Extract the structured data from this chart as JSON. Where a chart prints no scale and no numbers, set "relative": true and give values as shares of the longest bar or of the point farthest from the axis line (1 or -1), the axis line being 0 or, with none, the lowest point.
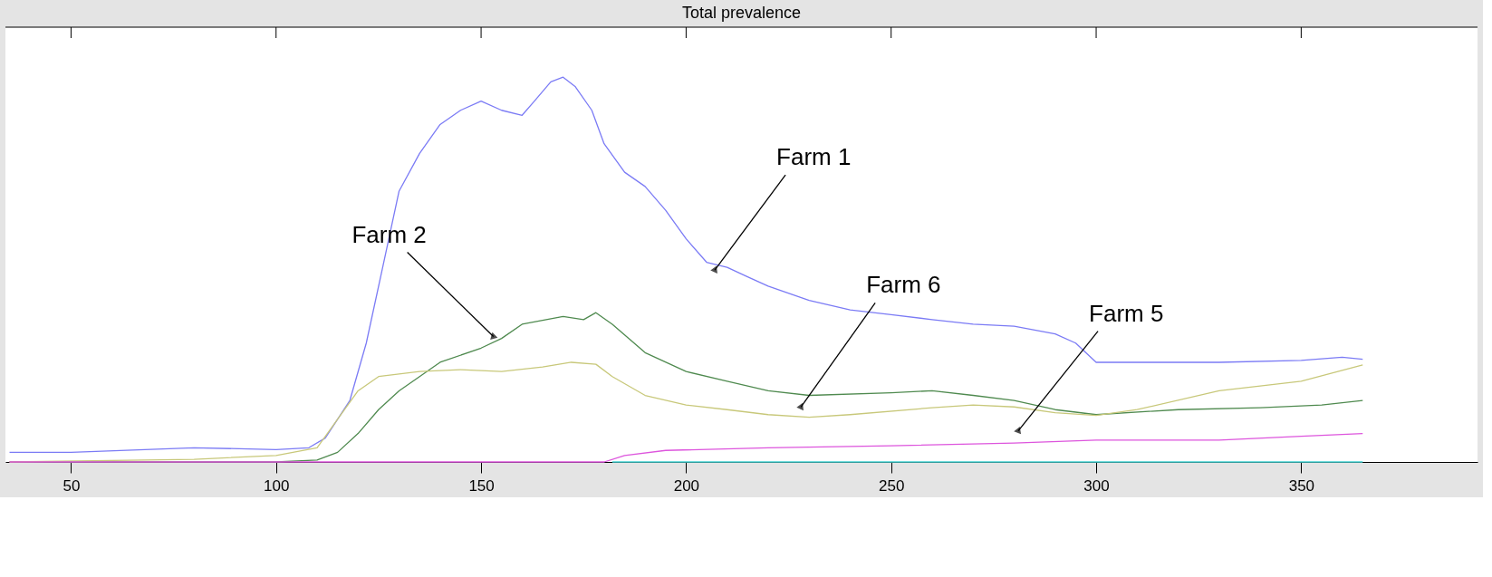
{
  "chart_data": {
    "type": "line",
    "title": "Total prevalence",
    "relative": true,
    "tick_labels": "x",
    "legend": false,
    "grid": false,
    "line_style": "solid",
    "marker": "none",
    "xlim": [
      34,
      393
    ],
    "xticks": [
      50,
      100,
      150,
      200,
      250,
      300,
      350
    ],
    "series": [
      {
        "name": null,
        "color": "#7b7bf5",
        "x": [
          35,
          50,
          80,
          100,
          108,
          112,
          118,
          122,
          126,
          130,
          135,
          140,
          145,
          150,
          155,
          160,
          163,
          167,
          170,
          173,
          177,
          180,
          185,
          190,
          195,
          200,
          205,
          210,
          215,
          220,
          230,
          240,
          250,
          260,
          270,
          280,
          290,
          295,
          300,
          310,
          330,
          350,
          360,
          365
        ],
        "values": [
          0.025,
          0.025,
          0.037,
          0.032,
          0.037,
          0.062,
          0.16,
          0.309,
          0.506,
          0.704,
          0.802,
          0.877,
          0.914,
          0.938,
          0.914,
          0.901,
          0.938,
          0.988,
          1,
          0.975,
          0.914,
          0.827,
          0.753,
          0.716,
          0.654,
          0.58,
          0.519,
          0.506,
          0.481,
          0.457,
          0.42,
          0.395,
          0.383,
          0.37,
          0.358,
          0.353,
          0.333,
          0.309,
          0.259,
          0.259,
          0.259,
          0.264,
          0.272,
          0.267
        ]
      },
      {
        "name": null,
        "color": "#4f8a4f",
        "x": [
          35,
          100,
          110,
          115,
          120,
          125,
          130,
          140,
          150,
          155,
          160,
          170,
          175,
          178,
          182,
          190,
          200,
          210,
          220,
          230,
          250,
          260,
          270,
          280,
          290,
          300,
          320,
          340,
          355,
          365
        ],
        "values": [
          0,
          0,
          0.005,
          0.025,
          0.074,
          0.136,
          0.185,
          0.259,
          0.296,
          0.321,
          0.358,
          0.378,
          0.37,
          0.388,
          0.358,
          0.284,
          0.235,
          0.21,
          0.185,
          0.173,
          0.18,
          0.185,
          0.173,
          0.16,
          0.136,
          0.123,
          0.136,
          0.141,
          0.148,
          0.16
        ]
      },
      {
        "name": null,
        "color": "#c8c87a",
        "x": [
          35,
          80,
          100,
          110,
          115,
          120,
          125,
          135,
          145,
          155,
          165,
          172,
          178,
          182,
          190,
          200,
          210,
          220,
          230,
          240,
          260,
          270,
          280,
          290,
          300,
          310,
          330,
          350,
          365
        ],
        "values": [
          0,
          0.007,
          0.017,
          0.037,
          0.111,
          0.185,
          0.222,
          0.235,
          0.24,
          0.235,
          0.247,
          0.259,
          0.254,
          0.222,
          0.173,
          0.148,
          0.136,
          0.123,
          0.116,
          0.123,
          0.141,
          0.148,
          0.143,
          0.128,
          0.121,
          0.136,
          0.185,
          0.21,
          0.252
        ]
      },
      {
        "name": null,
        "color": "#40d0d0",
        "x": [
          182,
          365
        ],
        "values": [
          0,
          0
        ]
      },
      {
        "name": null,
        "color": "#dd55dd",
        "x": [
          35,
          180,
          185,
          195,
          220,
          250,
          280,
          300,
          330,
          350,
          365
        ],
        "values": [
          0,
          0,
          0.017,
          0.03,
          0.037,
          0.042,
          0.049,
          0.057,
          0.057,
          0.067,
          0.074
        ]
      }
    ],
    "annotations": [
      {
        "text": "Farm 1",
        "x": 207,
        "y": 0.499
      },
      {
        "text": "Farm 2",
        "x": 153,
        "y": 0.326
      },
      {
        "text": "Farm 6",
        "x": 228,
        "y": 0.143
      },
      {
        "text": "Farm 5",
        "x": 281,
        "y": 0.081
      }
    ]
  }
}
